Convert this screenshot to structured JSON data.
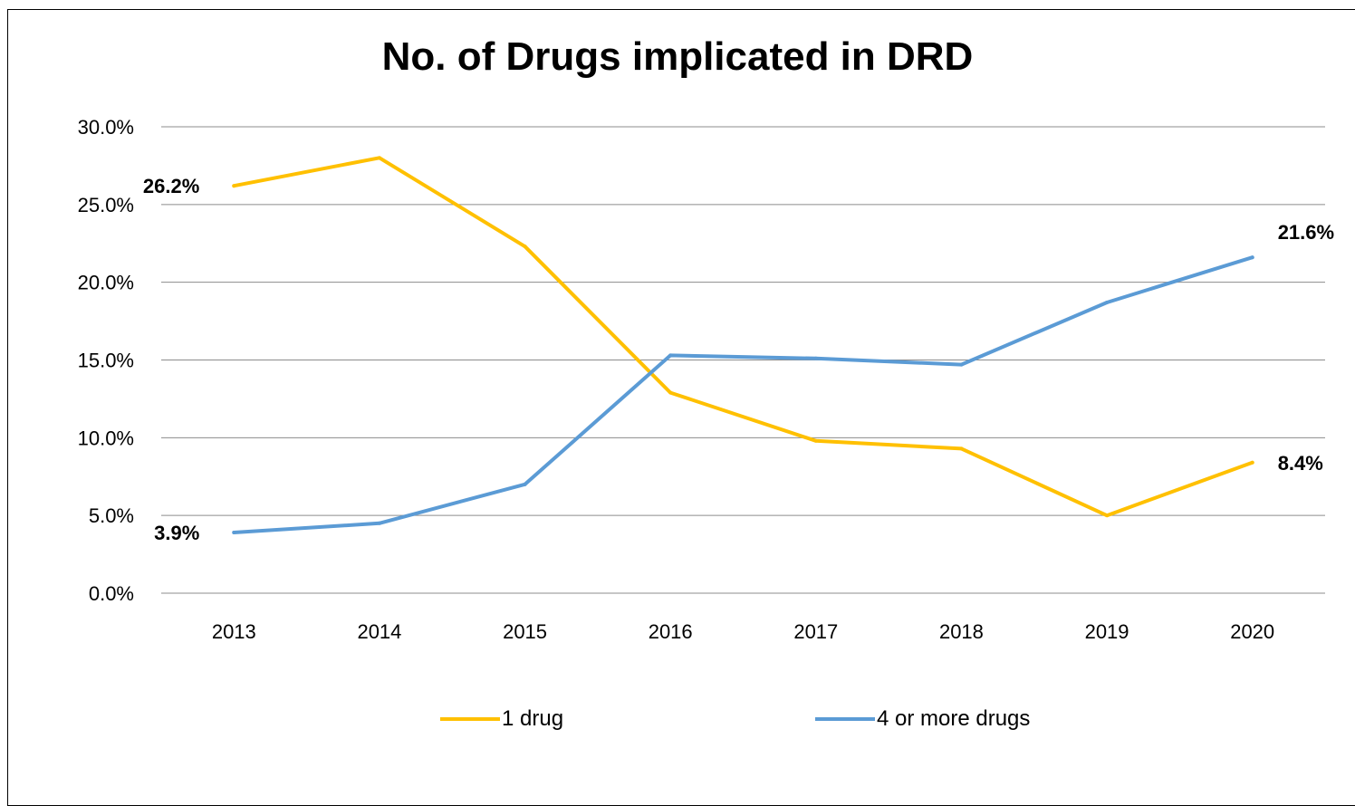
{
  "chart_data": {
    "type": "line",
    "title": "No. of Drugs implicated in DRD",
    "xlabel": "",
    "ylabel": "",
    "categories": [
      "2013",
      "2014",
      "2015",
      "2016",
      "2017",
      "2018",
      "2019",
      "2020"
    ],
    "ylim": [
      0,
      30
    ],
    "y_ticks": [
      "0.0%",
      "5.0%",
      "10.0%",
      "15.0%",
      "20.0%",
      "25.0%",
      "30.0%"
    ],
    "grid": true,
    "legend_position": "bottom",
    "series": [
      {
        "name": "1 drug",
        "color": "#FFC000",
        "values": [
          26.2,
          28.0,
          22.3,
          12.9,
          9.8,
          9.3,
          5.0,
          8.4
        ],
        "labels": [
          {
            "index": 0,
            "text": "26.2%"
          },
          {
            "index": 7,
            "text": "8.4%"
          }
        ]
      },
      {
        "name": "4 or more drugs",
        "color": "#5B9BD5",
        "values": [
          3.9,
          4.5,
          7.0,
          15.3,
          15.1,
          14.7,
          18.7,
          21.6
        ],
        "labels": [
          {
            "index": 0,
            "text": "3.9%"
          },
          {
            "index": 7,
            "text": "21.6%"
          }
        ]
      }
    ]
  }
}
